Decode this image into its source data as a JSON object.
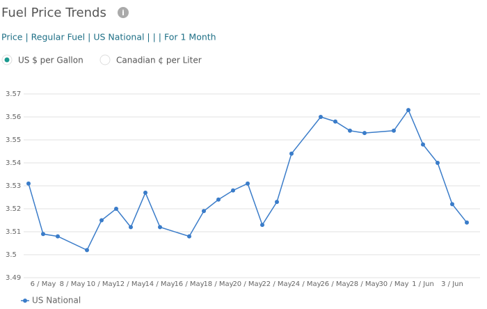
{
  "header": {
    "title": "Fuel Price Trends",
    "breadcrumb": "Price | Regular Fuel | US National | | | For 1 Month"
  },
  "units": {
    "options": [
      "US $ per Gallon",
      "Canadian ¢ per Liter"
    ],
    "selected": 0
  },
  "chart_data": {
    "type": "line",
    "categories": [
      null,
      "6 / May",
      null,
      "8 / May",
      null,
      "10 / May",
      null,
      "12 / May",
      null,
      "14 / May",
      null,
      "16 / May",
      null,
      "18 / May",
      null,
      "20 / May",
      null,
      "22 / May",
      null,
      "24 / May",
      null,
      "26 / May",
      null,
      "28 / May",
      null,
      "30 / May",
      null,
      "1 / Jun",
      null,
      "3 / Jun",
      null
    ],
    "series": [
      {
        "name": "US National",
        "color": "#3a7cc9",
        "values": [
          3.531,
          3.509,
          3.508,
          null,
          3.502,
          3.515,
          3.52,
          3.512,
          3.527,
          3.512,
          null,
          3.508,
          3.519,
          3.524,
          3.528,
          3.531,
          3.513,
          3.523,
          3.544,
          null,
          3.56,
          3.558,
          3.554,
          3.553,
          null,
          3.554,
          3.563,
          3.548,
          3.54,
          3.522,
          3.514
        ]
      }
    ],
    "connect_gaps": true,
    "ylim": [
      3.49,
      3.57
    ],
    "yticks": [
      3.49,
      3.5,
      3.51,
      3.52,
      3.53,
      3.54,
      3.55,
      3.56,
      3.57
    ],
    "grid": true
  }
}
